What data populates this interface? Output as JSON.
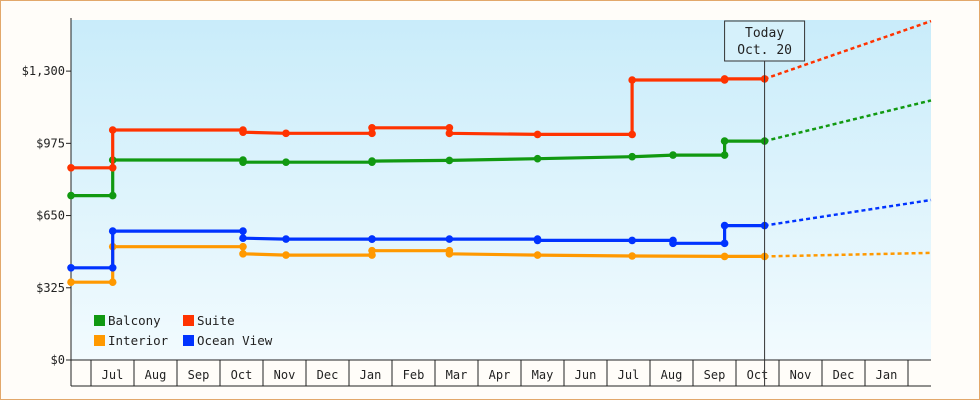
{
  "chart_data": {
    "type": "line",
    "step": true,
    "x_unit": "month",
    "x_start": "2024-06",
    "x_tick_labels": [
      "Jul",
      "Aug",
      "Sep",
      "Oct",
      "Nov",
      "Dec",
      "Jan",
      "Feb",
      "Mar",
      "Apr",
      "May",
      "Jun",
      "Jul",
      "Aug",
      "Sep",
      "Oct",
      "Nov",
      "Dec",
      "Jan"
    ],
    "y_ticks": [
      0,
      325,
      650,
      975,
      1300
    ],
    "y_tick_labels": [
      "$0",
      "$325",
      "$650",
      "$975",
      "$1,300"
    ],
    "ylim": [
      0,
      1530
    ],
    "xlim": [
      0,
      20.0
    ],
    "grid": false,
    "legend_position": "bottom-left",
    "background_gradient": [
      "#c9ecfa",
      "#f2fbfe"
    ],
    "today": {
      "label": "Today",
      "date": "Oct. 20",
      "x": 16.13
    },
    "series": [
      {
        "name": "Balcony",
        "color": "#119911",
        "points": [
          [
            0.0,
            740
          ],
          [
            0.97,
            740
          ],
          [
            0.97,
            900
          ],
          [
            4.0,
            900
          ],
          [
            4.0,
            890
          ],
          [
            5.0,
            890
          ],
          [
            7.0,
            890
          ],
          [
            7.0,
            895
          ],
          [
            8.8,
            898
          ],
          [
            10.85,
            906
          ],
          [
            13.05,
            915
          ],
          [
            14.0,
            922
          ],
          [
            15.2,
            922
          ],
          [
            15.2,
            985
          ],
          [
            16.13,
            985
          ]
        ],
        "forecast": [
          [
            16.13,
            985
          ],
          [
            20.0,
            1168
          ]
        ]
      },
      {
        "name": "Suite",
        "color": "#ff3300",
        "points": [
          [
            0.0,
            865
          ],
          [
            0.97,
            865
          ],
          [
            0.97,
            1035
          ],
          [
            4.0,
            1035
          ],
          [
            4.0,
            1025
          ],
          [
            5.0,
            1020
          ],
          [
            7.0,
            1020
          ],
          [
            7.0,
            1045
          ],
          [
            8.8,
            1045
          ],
          [
            8.8,
            1020
          ],
          [
            10.85,
            1015
          ],
          [
            13.05,
            1015
          ],
          [
            13.05,
            1260
          ],
          [
            15.2,
            1260
          ],
          [
            15.2,
            1265
          ],
          [
            16.13,
            1265
          ]
        ],
        "forecast": [
          [
            16.13,
            1265
          ],
          [
            20.0,
            1525
          ]
        ]
      },
      {
        "name": "Interior",
        "color": "#ff9900",
        "points": [
          [
            0.0,
            350
          ],
          [
            0.97,
            350
          ],
          [
            0.97,
            510
          ],
          [
            4.0,
            510
          ],
          [
            4.0,
            478
          ],
          [
            5.0,
            472
          ],
          [
            7.0,
            472
          ],
          [
            7.0,
            492
          ],
          [
            8.8,
            492
          ],
          [
            8.8,
            478
          ],
          [
            10.85,
            472
          ],
          [
            13.05,
            468
          ],
          [
            15.2,
            466
          ],
          [
            16.13,
            466
          ]
        ],
        "forecast": [
          [
            16.13,
            466
          ],
          [
            20.0,
            482
          ]
        ]
      },
      {
        "name": "Ocean View",
        "color": "#0033ff",
        "points": [
          [
            0.0,
            415
          ],
          [
            0.97,
            415
          ],
          [
            0.97,
            580
          ],
          [
            4.0,
            580
          ],
          [
            4.0,
            548
          ],
          [
            5.0,
            544
          ],
          [
            7.0,
            544
          ],
          [
            7.0,
            544
          ],
          [
            8.8,
            544
          ],
          [
            10.85,
            544
          ],
          [
            10.85,
            538
          ],
          [
            13.05,
            538
          ],
          [
            14.0,
            538
          ],
          [
            14.0,
            525
          ],
          [
            15.2,
            525
          ],
          [
            15.2,
            605
          ],
          [
            16.13,
            605
          ]
        ],
        "forecast": [
          [
            16.13,
            605
          ],
          [
            20.0,
            720
          ]
        ]
      }
    ],
    "legend_order": [
      "Balcony",
      "Suite",
      "Interior",
      "Ocean View"
    ]
  }
}
